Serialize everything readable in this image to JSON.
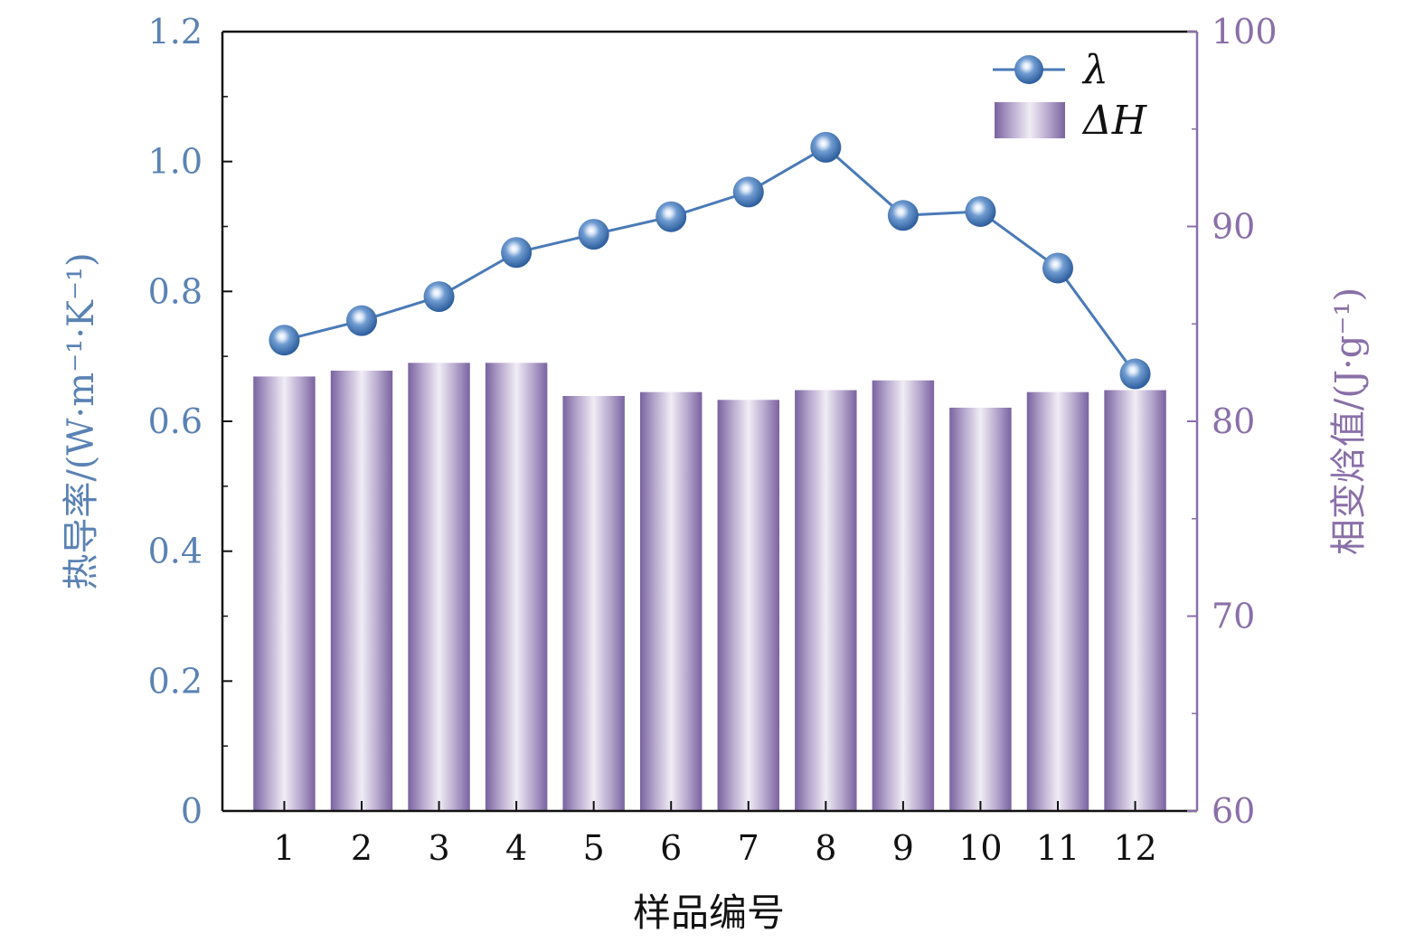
{
  "chart_data": {
    "type": "bar+line",
    "categories": [
      "1",
      "2",
      "3",
      "4",
      "5",
      "6",
      "7",
      "8",
      "9",
      "10",
      "11",
      "12"
    ],
    "xlabel": "样品编号",
    "ylabel_left": "热导率/(W·m⁻¹·K⁻¹)",
    "ylabel_right": "相变焓值/(J·g⁻¹)",
    "ylim_left": [
      0,
      1.2
    ],
    "ylim_right": [
      60,
      100
    ],
    "yticks_left": [
      "0",
      "0.2",
      "0.4",
      "0.6",
      "0.8",
      "1.0",
      "1.2"
    ],
    "yticks_right": [
      "60",
      "70",
      "80",
      "90",
      "100"
    ],
    "grid": false,
    "legend_position": "top-right",
    "series": [
      {
        "name": "λ",
        "kind": "line",
        "axis": "left",
        "color": "#4a7ab8",
        "values": [
          0.725,
          0.755,
          0.792,
          0.86,
          0.888,
          0.915,
          0.953,
          1.022,
          0.917,
          0.923,
          0.836,
          0.673
        ]
      },
      {
        "name": "ΔH",
        "kind": "bar",
        "axis": "right",
        "color": "#7a62a0",
        "values": [
          82.3,
          82.6,
          83.0,
          83.0,
          81.3,
          81.5,
          81.1,
          81.6,
          82.1,
          80.7,
          81.5,
          81.6
        ]
      }
    ]
  },
  "colors": {
    "left_axis": "#5a82b4",
    "right_axis": "#8a6fa8",
    "line": "#4a7ab8",
    "bar_dark": "#7a62a0",
    "bar_light": "#eeeaf4"
  }
}
